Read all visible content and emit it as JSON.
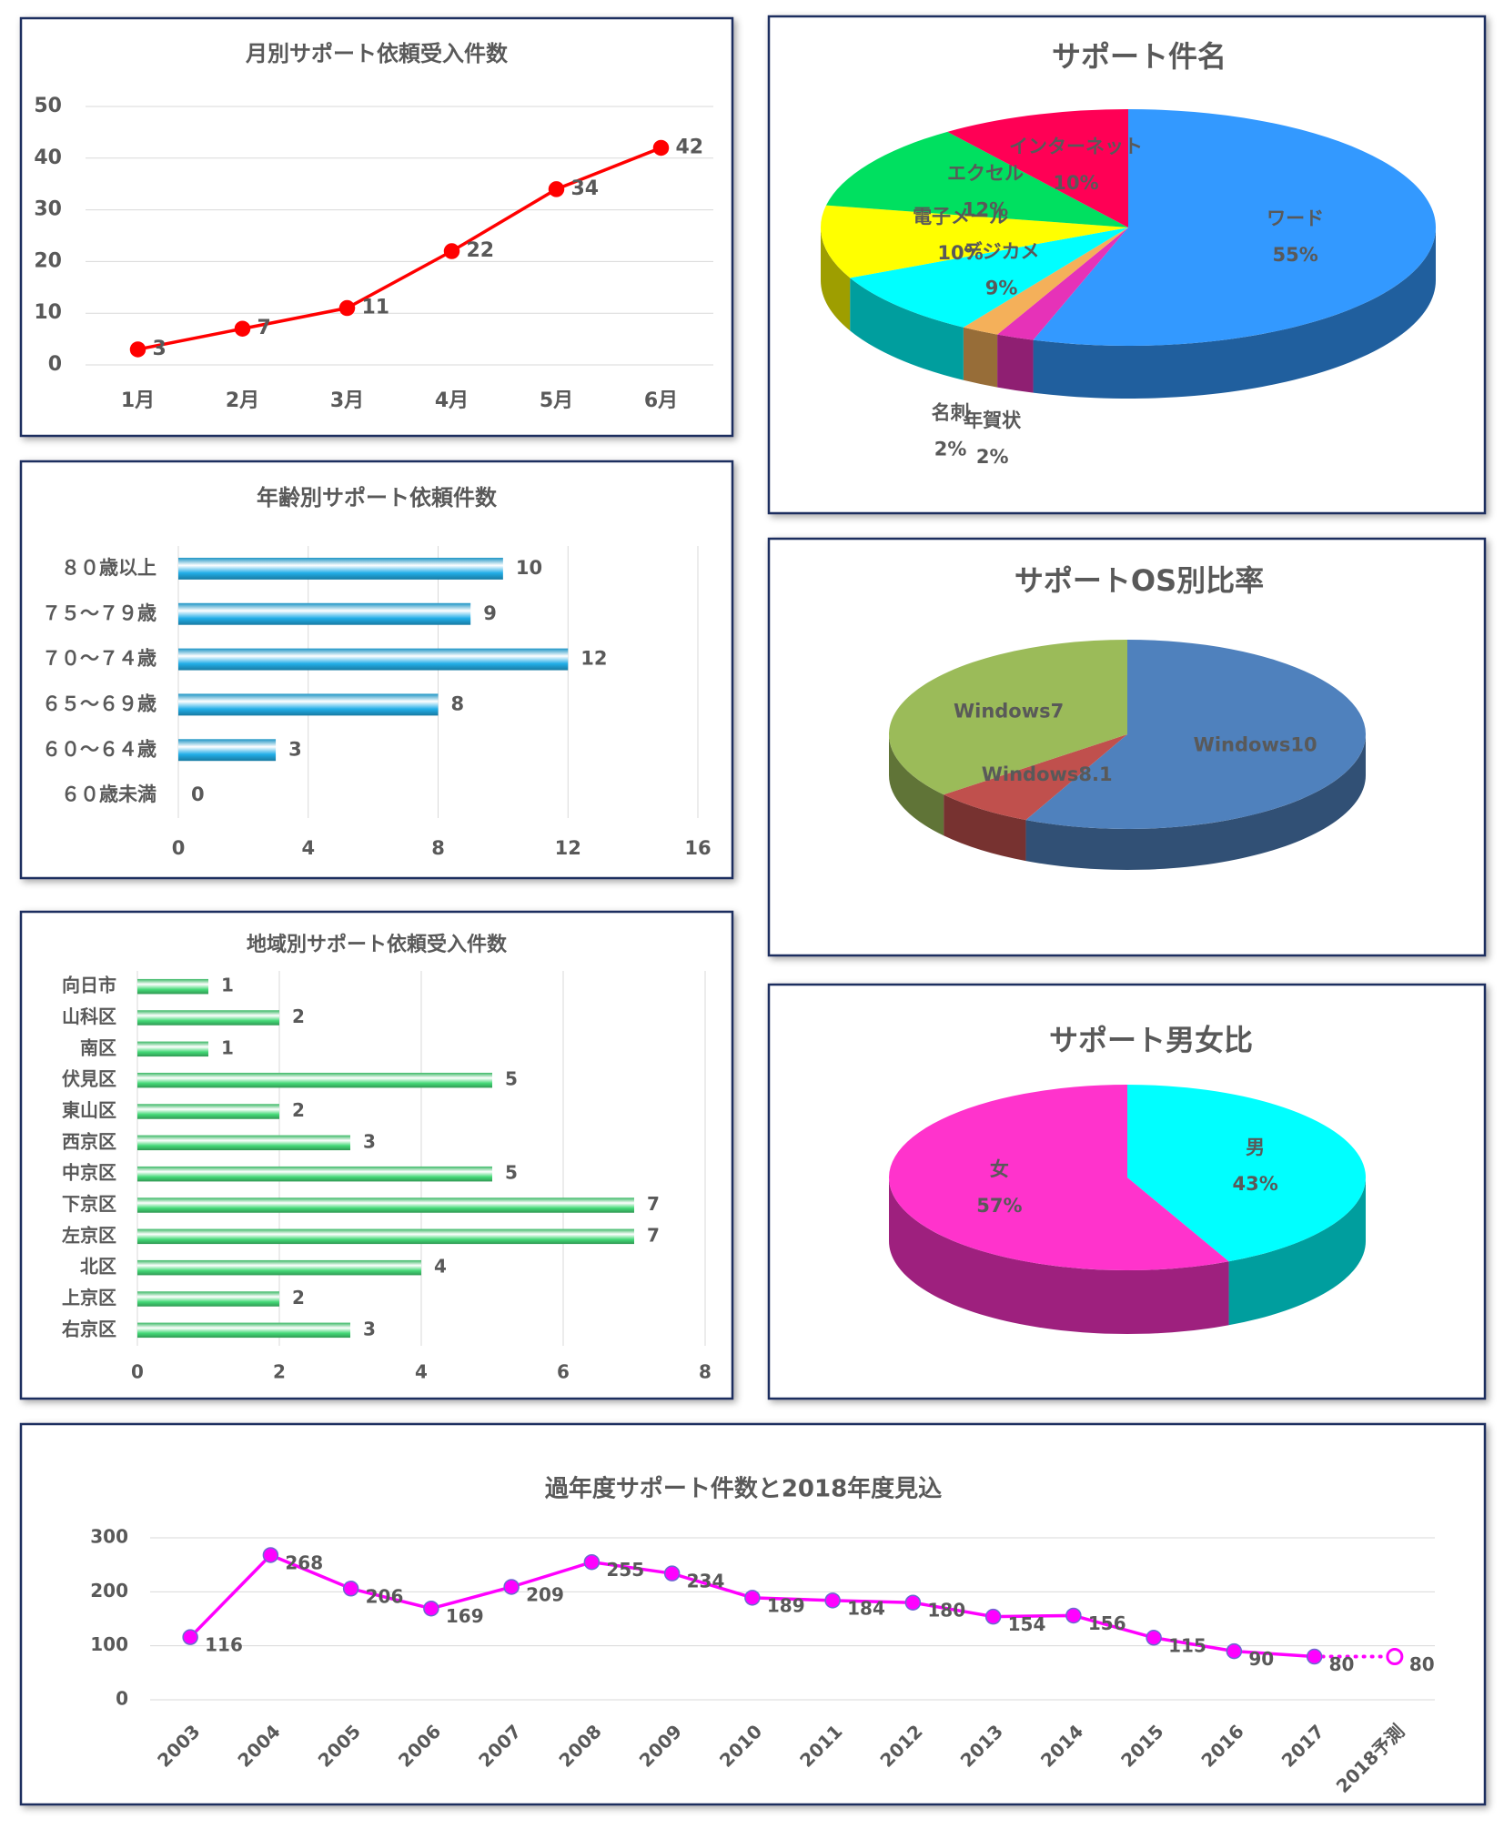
{
  "chart_data": [
    {
      "type": "line",
      "title": "月別サポート依頼受入件数",
      "categories": [
        "1月",
        "2月",
        "3月",
        "4月",
        "5月",
        "6月"
      ],
      "values": [
        3,
        7,
        11,
        22,
        34,
        42
      ],
      "color": "#ff0000",
      "ylim": [
        0,
        50
      ],
      "yticks": [
        0,
        10,
        20,
        30,
        40,
        50
      ],
      "grid": true
    },
    {
      "type": "pie",
      "title": "サポート件名",
      "categories": [
        "ワード",
        "年賀状",
        "名刺",
        "デジカメ",
        "電子メール",
        "エクセル",
        "インターネット"
      ],
      "values": [
        55,
        2,
        2,
        9,
        10,
        12,
        10
      ],
      "value_labels": [
        "55%",
        "2%",
        "2%",
        "9%",
        "10%",
        "12%",
        "10%"
      ],
      "colors": [
        "#3399ff",
        "#e632b8",
        "#f4b05a",
        "#00ffff",
        "#ffff00",
        "#00e060",
        "#ff0055"
      ]
    },
    {
      "type": "barh",
      "title": "年齢別サポート依頼件数",
      "categories": [
        "８０歳以上",
        "７５～７９歳",
        "７０～７４歳",
        "６５～６９歳",
        "６０～６４歳",
        "６０歳未満"
      ],
      "values": [
        10,
        9,
        12,
        8,
        3,
        0
      ],
      "color": "#22aee8",
      "xlim": [
        0,
        16
      ],
      "xticks": [
        0,
        4,
        8,
        12,
        16
      ],
      "grid": true
    },
    {
      "type": "pie",
      "title": "サポートOS別比率",
      "categories": [
        "Windows10",
        "Windows8.1",
        "Windows7"
      ],
      "values": [
        57,
        7,
        36
      ],
      "colors": [
        "#4f81bd",
        "#c0504d",
        "#9bbb59"
      ]
    },
    {
      "type": "barh",
      "title": "地域別サポート依頼受入件数",
      "categories": [
        "向日市",
        "山科区",
        "南区",
        "伏見区",
        "東山区",
        "西京区",
        "中京区",
        "下京区",
        "左京区",
        "北区",
        "上京区",
        "右京区"
      ],
      "values": [
        1,
        2,
        1,
        5,
        2,
        3,
        5,
        7,
        7,
        4,
        2,
        3
      ],
      "color": "#44d977",
      "xlim": [
        0,
        8
      ],
      "xticks": [
        0,
        2,
        4,
        6,
        8
      ],
      "grid": true
    },
    {
      "type": "pie",
      "title": "サポート男女比",
      "categories": [
        "男",
        "女"
      ],
      "values": [
        43,
        57
      ],
      "value_labels": [
        "43%",
        "57%"
      ],
      "colors": [
        "#00ffff",
        "#ff33cc"
      ]
    },
    {
      "type": "line",
      "title": "過年度サポート件数と2018年度見込",
      "categories": [
        "2003",
        "2004",
        "2005",
        "2006",
        "2007",
        "2008",
        "2009",
        "2010",
        "2011",
        "2012",
        "2013",
        "2014",
        "2015",
        "2016",
        "2017",
        "2018予測"
      ],
      "series": [
        {
          "color": "#ff00ff",
          "values": [
            116,
            268,
            206,
            169,
            209,
            255,
            234,
            189,
            184,
            180,
            154,
            156,
            115,
            90,
            80,
            null
          ]
        },
        {
          "color": "#ff00ff",
          "line_style": "dotted",
          "marker": "hollow",
          "values": [
            null,
            null,
            null,
            null,
            null,
            null,
            null,
            null,
            null,
            null,
            null,
            null,
            null,
            null,
            80,
            80
          ]
        }
      ],
      "ylim": [
        0,
        300
      ],
      "yticks": [
        0,
        100,
        200,
        300
      ],
      "grid": true
    }
  ]
}
